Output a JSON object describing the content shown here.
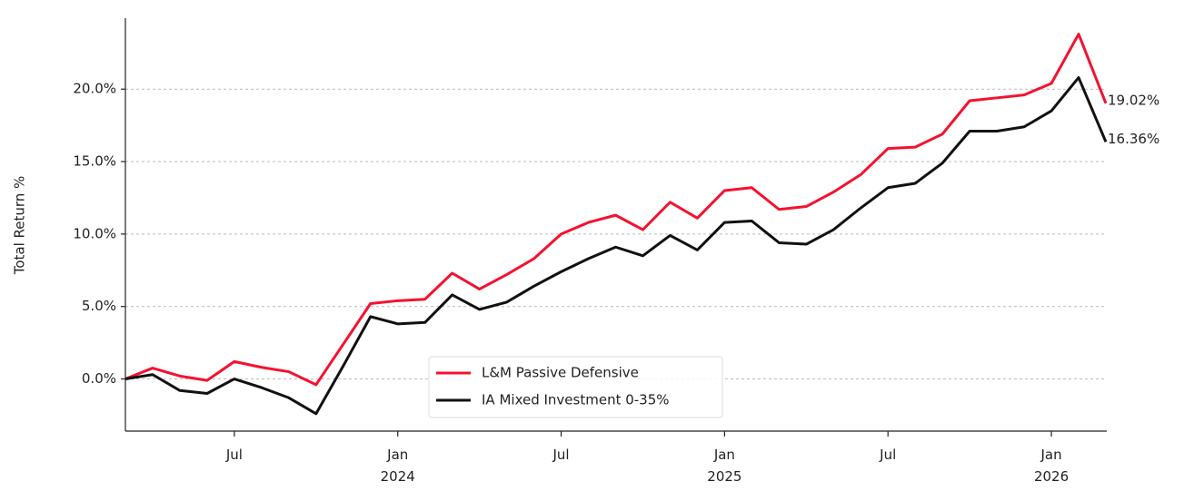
{
  "chart_data": {
    "type": "line",
    "y_label": "Total Return %",
    "x": [
      "2023-03",
      "2023-04",
      "2023-05",
      "2023-06",
      "2023-07",
      "2023-08",
      "2023-09",
      "2023-10",
      "2023-11",
      "2023-12",
      "2024-01",
      "2024-02",
      "2024-03",
      "2024-04",
      "2024-05",
      "2024-06",
      "2024-07",
      "2024-08",
      "2024-09",
      "2024-10",
      "2024-11",
      "2024-12",
      "2025-01",
      "2025-02",
      "2025-03",
      "2025-04",
      "2025-05",
      "2025-06",
      "2025-07",
      "2025-08",
      "2025-09",
      "2025-10",
      "2025-11",
      "2025-12",
      "2026-01",
      "2026-02",
      "2026-03"
    ],
    "series": [
      {
        "name": "L&M Passive Defensive",
        "color": "#f5112f",
        "values": [
          0,
          0.75,
          0.2,
          -0.1,
          1.2,
          0.8,
          0.5,
          -0.4,
          2.4,
          5.2,
          5.4,
          5.5,
          7.3,
          6.2,
          7.2,
          8.3,
          10.0,
          10.8,
          11.3,
          10.3,
          12.2,
          11.1,
          13.0,
          13.2,
          11.7,
          11.9,
          12.9,
          14.1,
          15.9,
          16.0,
          16.9,
          19.2,
          19.4,
          19.6,
          20.4,
          23.8,
          19.02
        ],
        "value_labels": [
          null,
          null,
          null,
          null,
          null,
          null,
          null,
          null,
          null,
          null,
          null,
          null,
          null,
          null,
          null,
          null,
          null,
          null,
          null,
          null,
          null,
          null,
          null,
          null,
          null,
          null,
          null,
          null,
          null,
          null,
          null,
          null,
          null,
          null,
          null,
          null,
          "19.02%"
        ]
      },
      {
        "name": "IA Mixed Investment 0-35%",
        "color": "#111111",
        "values": [
          0,
          0.3,
          -0.8,
          -1.0,
          0,
          -0.6,
          -1.3,
          -2.4,
          0.9,
          4.3,
          3.8,
          3.9,
          5.8,
          4.8,
          5.3,
          6.4,
          7.4,
          8.3,
          9.1,
          8.5,
          9.9,
          8.9,
          10.8,
          10.9,
          9.4,
          9.3,
          10.3,
          11.8,
          13.2,
          13.5,
          14.9,
          17.1,
          17.1,
          17.4,
          18.5,
          20.8,
          16.36
        ],
        "value_labels": [
          null,
          null,
          null,
          null,
          null,
          null,
          null,
          null,
          null,
          null,
          null,
          null,
          null,
          null,
          null,
          null,
          null,
          null,
          null,
          null,
          null,
          null,
          null,
          null,
          null,
          null,
          null,
          null,
          null,
          null,
          null,
          null,
          null,
          null,
          null,
          null,
          "16.36%"
        ]
      }
    ],
    "xlim": [
      "2023-03",
      "2026-03"
    ],
    "xticks": [
      {
        "value": "2023-07",
        "label": "Jul"
      },
      {
        "value": "2024-01",
        "label": "Jan\n2024"
      },
      {
        "value": "2024-07",
        "label": "Jul"
      },
      {
        "value": "2025-01",
        "label": "Jan\n2025"
      },
      {
        "value": "2025-07",
        "label": "Jul"
      },
      {
        "value": "2026-01",
        "label": "Jan\n2026"
      }
    ],
    "ylim": [
      -3.6,
      24.9
    ],
    "yticks": [
      {
        "value": 0,
        "label": "0.0%"
      },
      {
        "value": 5,
        "label": "5.0%"
      },
      {
        "value": 10,
        "label": "10.0%"
      },
      {
        "value": 15,
        "label": "15.0%"
      },
      {
        "value": 20,
        "label": "20.0%"
      }
    ],
    "grid": true,
    "legend": "lower center"
  }
}
